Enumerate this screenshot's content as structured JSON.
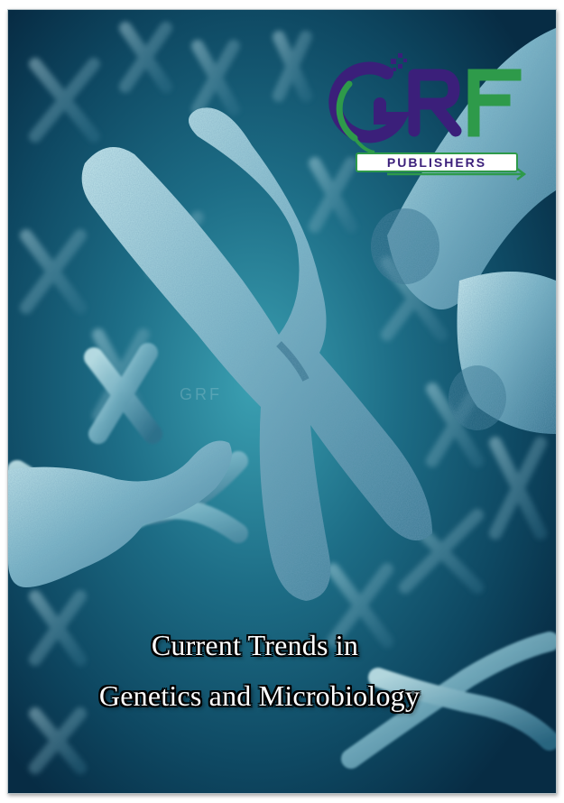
{
  "logo": {
    "letters": "GRF",
    "publishers_text": "PUBLISHERS",
    "colors": {
      "purple": "#3b1f7a",
      "green": "#2e9a4a"
    }
  },
  "watermark_text": "GRF",
  "title": {
    "line1": "Current Trends in",
    "line2": "Genetics and Microbiology"
  },
  "background_image": "chromosome-illustration"
}
